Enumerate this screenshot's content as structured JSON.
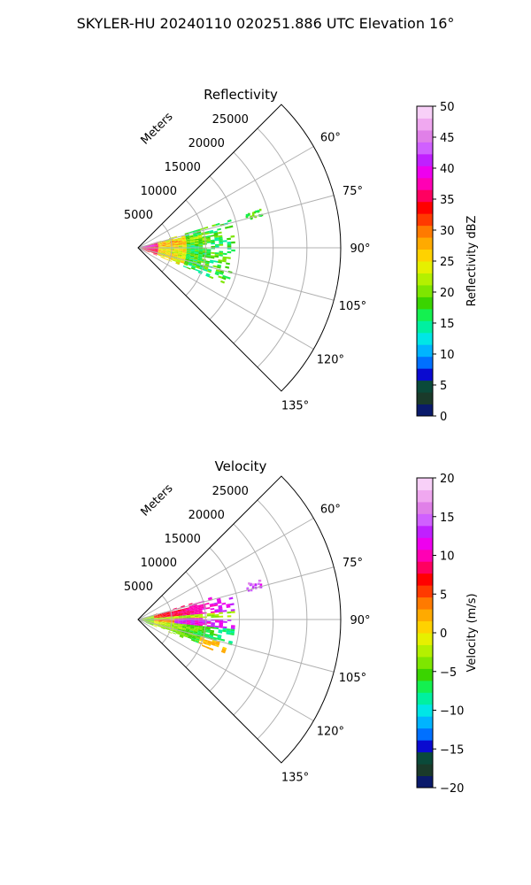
{
  "figure": {
    "suptitle": "SKYLER-HU  20240110  020251.886 UTC Elevation 16°"
  },
  "chart_data": [
    {
      "type": "heatmap",
      "title": "Reflectivity",
      "projection": "polar sector",
      "radial_label": "Meters",
      "radial_ticks": [
        5000,
        10000,
        15000,
        20000,
        25000
      ],
      "radial_tick_labels": [
        "5000",
        "10000",
        "15000",
        "20000",
        "25000"
      ],
      "rlim": [
        0,
        30000
      ],
      "theta_range_deg": [
        45,
        135
      ],
      "theta_ticks": [
        60,
        75,
        90,
        105,
        120,
        135
      ],
      "theta_tick_labels": [
        "60°",
        "75°",
        "90°",
        "105°",
        "120°",
        "135°"
      ],
      "grid": true,
      "colorbar": {
        "label": "Reflectivity dBZ",
        "range": [
          0,
          50
        ],
        "ticks": [
          0,
          5,
          10,
          15,
          20,
          25,
          30,
          35,
          40,
          45,
          50
        ],
        "tick_labels": [
          "0",
          "5",
          "10",
          "15",
          "20",
          "25",
          "30",
          "35",
          "40",
          "45",
          "50"
        ],
        "colors": [
          "#0a1a6b",
          "#1a3a2a",
          "#0a4a3a",
          "#0a0ad0",
          "#0070ff",
          "#00b4ff",
          "#00e6e6",
          "#00f0a0",
          "#14f050",
          "#3ad400",
          "#7ee600",
          "#b4f000",
          "#e6f000",
          "#ffd200",
          "#ffaa00",
          "#ff7a00",
          "#ff3a00",
          "#ff0000",
          "#ff0060",
          "#ff00b4",
          "#ee00ee",
          "#c020ff",
          "#d060ff",
          "#e080e8",
          "#f0a8f0",
          "#f8d0f8"
        ]
      },
      "echo_summary": {
        "near_range_dbz": [
          25,
          38
        ],
        "mid_range_dbz": [
          15,
          25
        ],
        "far_range_dbz": [
          12,
          18
        ],
        "azimuth_extent_deg": [
          73,
          112
        ],
        "max_range_m": 14000
      }
    },
    {
      "type": "heatmap",
      "title": "Velocity",
      "projection": "polar sector",
      "radial_label": "Meters",
      "radial_ticks": [
        5000,
        10000,
        15000,
        20000,
        25000
      ],
      "radial_tick_labels": [
        "5000",
        "10000",
        "15000",
        "20000",
        "25000"
      ],
      "rlim": [
        0,
        30000
      ],
      "theta_range_deg": [
        45,
        135
      ],
      "theta_ticks": [
        60,
        75,
        90,
        105,
        120,
        135
      ],
      "theta_tick_labels": [
        "60°",
        "75°",
        "90°",
        "105°",
        "120°",
        "135°"
      ],
      "grid": true,
      "colorbar": {
        "label": "Velocity (m/s)",
        "range": [
          -20,
          20
        ],
        "ticks": [
          -20,
          -15,
          -10,
          -5,
          0,
          5,
          10,
          15,
          20
        ],
        "tick_labels": [
          "−20",
          "−15",
          "−10",
          "−5",
          "0",
          "5",
          "10",
          "15",
          "20"
        ],
        "colors": [
          "#0a1a6b",
          "#1a3a2a",
          "#0a4a3a",
          "#0a0ad0",
          "#0070ff",
          "#00b4ff",
          "#00e6e6",
          "#00f0a0",
          "#14f050",
          "#3ad400",
          "#7ee600",
          "#b4f000",
          "#e6f000",
          "#ffd200",
          "#ffaa00",
          "#ff7a00",
          "#ff3a00",
          "#ff0000",
          "#ff0060",
          "#ff00b4",
          "#ee00ee",
          "#c020ff",
          "#d060ff",
          "#e080e8",
          "#f0a8f0",
          "#f8d0f8"
        ]
      },
      "echo_summary": {
        "north_side_velocity_ms": [
          5,
          12
        ],
        "south_side_velocity_ms": [
          -12,
          2
        ],
        "azimuth_extent_deg": [
          73,
          112
        ],
        "max_range_m": 14000
      }
    }
  ]
}
